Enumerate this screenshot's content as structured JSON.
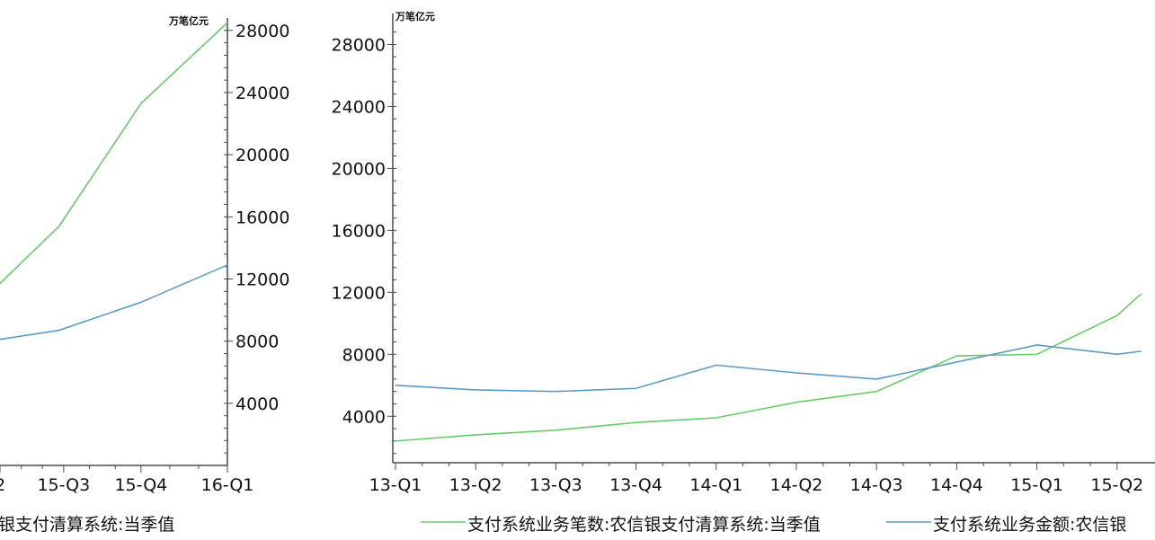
{
  "chart_data": [
    {
      "type": "line",
      "unit": "万笔亿元",
      "ylim": [
        0,
        28800
      ],
      "y_ticks": [
        4000,
        8000,
        12000,
        16000,
        20000,
        24000,
        28000
      ],
      "x_tick_labels": [
        "2",
        "15-Q3",
        "15-Q4",
        "16-Q1"
      ],
      "x_tick_fractions": [
        0.0,
        0.28,
        0.62,
        1.0
      ],
      "series": [
        {
          "x": [
            -0.05,
            0.26,
            0.62,
            1.0
          ],
          "values": [
            11000,
            15400,
            23300,
            28500
          ],
          "color": "#66cc66"
        },
        {
          "x": [
            -0.05,
            0.26,
            0.62,
            1.0
          ],
          "values": [
            8000,
            8700,
            10500,
            12900
          ],
          "color": "#5b9bc6"
        }
      ],
      "legend_text": "银支付清算系统:当季值"
    },
    {
      "type": "line",
      "unit": "万笔亿元",
      "ylim": [
        1000,
        30000
      ],
      "y_ticks": [
        4000,
        8000,
        12000,
        16000,
        20000,
        24000,
        28000
      ],
      "categories": [
        "13-Q1",
        "13-Q2",
        "13-Q3",
        "13-Q4",
        "14-Q1",
        "14-Q2",
        "14-Q3",
        "14-Q4",
        "15-Q1",
        "15-Q2"
      ],
      "series": [
        {
          "name": "支付系统业务笔数:农信银支付清算系统:当季值",
          "x": [
            0,
            1,
            2,
            3,
            4,
            5,
            6,
            7,
            8,
            9,
            9.3
          ],
          "values": [
            2400,
            2800,
            3100,
            3600,
            3900,
            4900,
            5600,
            7900,
            8000,
            10500,
            11900
          ],
          "color": "#66cc66"
        },
        {
          "name": "支付系统业务金额:农信银",
          "x": [
            0,
            1,
            2,
            3,
            4,
            5,
            6,
            7,
            8,
            9,
            9.3
          ],
          "values": [
            6000,
            5700,
            5600,
            5800,
            7300,
            6800,
            6400,
            7500,
            8600,
            8000,
            8200
          ],
          "color": "#5b9bc6"
        }
      ]
    }
  ]
}
